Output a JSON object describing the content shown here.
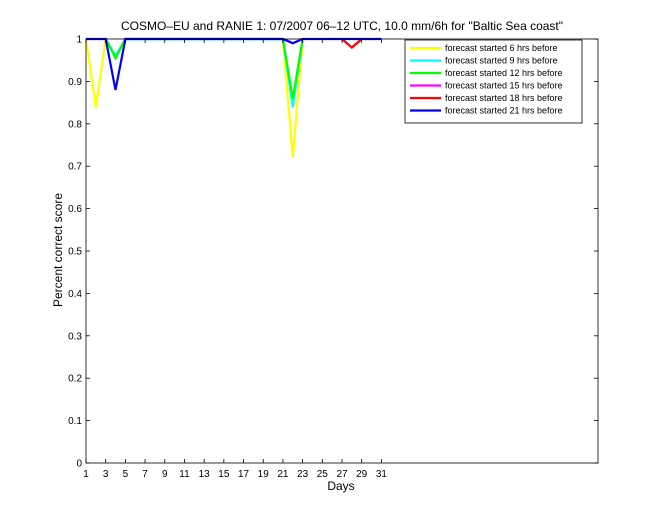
{
  "chart_data": {
    "type": "line",
    "title": "COSMO–EU and RANIE 1: 07/2007 06–12 UTC, 10.0 mm/6h for \"Baltic Sea coast\"",
    "xlabel": "Days",
    "ylabel": "Percent correct score",
    "xlim": [
      1,
      53
    ],
    "ylim": [
      0,
      1
    ],
    "x_ticks": [
      1,
      3,
      5,
      7,
      9,
      11,
      13,
      15,
      17,
      19,
      21,
      23,
      25,
      27,
      29,
      31
    ],
    "y_ticks": [
      0,
      0.1,
      0.2,
      0.3,
      0.4,
      0.5,
      0.6,
      0.7,
      0.8,
      0.9,
      1
    ],
    "y_tick_labels": [
      "0",
      "0.1",
      "0.2",
      "0.3",
      "0.4",
      "0.5",
      "0.6",
      "0.7",
      "0.8",
      "0.9",
      "1"
    ],
    "grid": false,
    "legend_position": "top-right",
    "series": [
      {
        "name": "forecast started 6 hrs before",
        "color": "#ffff00",
        "x": [
          1,
          2,
          3,
          4,
          5,
          21,
          22,
          23
        ],
        "y": [
          1,
          0.84,
          1,
          0.96,
          1,
          1,
          0.72,
          1
        ]
      },
      {
        "name": "forecast started 9 hrs before",
        "color": "#00ffff",
        "x": [
          3,
          4,
          5,
          21,
          22,
          23
        ],
        "y": [
          1,
          0.96,
          1,
          1,
          0.84,
          1
        ]
      },
      {
        "name": "forecast started 12 hrs before",
        "color": "#00ff00",
        "x": [
          3,
          4,
          5,
          21,
          22,
          23
        ],
        "y": [
          1,
          0.955,
          1,
          1,
          0.86,
          1
        ]
      },
      {
        "name": "forecast started 15 hrs before",
        "color": "#ff00ff",
        "x": [
          21,
          22,
          23
        ],
        "y": [
          1,
          0.99,
          1
        ]
      },
      {
        "name": "forecast started 18 hrs before",
        "color": "#ff0000",
        "x": [
          27,
          28,
          29
        ],
        "y": [
          1,
          0.98,
          1
        ]
      },
      {
        "name": "forecast started 21 hrs before",
        "color": "#0000ff",
        "x": [
          1,
          2,
          3,
          4,
          5,
          21,
          22,
          23,
          24,
          25,
          26,
          27,
          28,
          29,
          30,
          31
        ],
        "y": [
          1,
          1,
          1,
          0.88,
          1,
          1,
          0.99,
          1,
          1,
          1,
          1,
          1,
          1,
          1,
          1,
          1
        ]
      }
    ]
  }
}
